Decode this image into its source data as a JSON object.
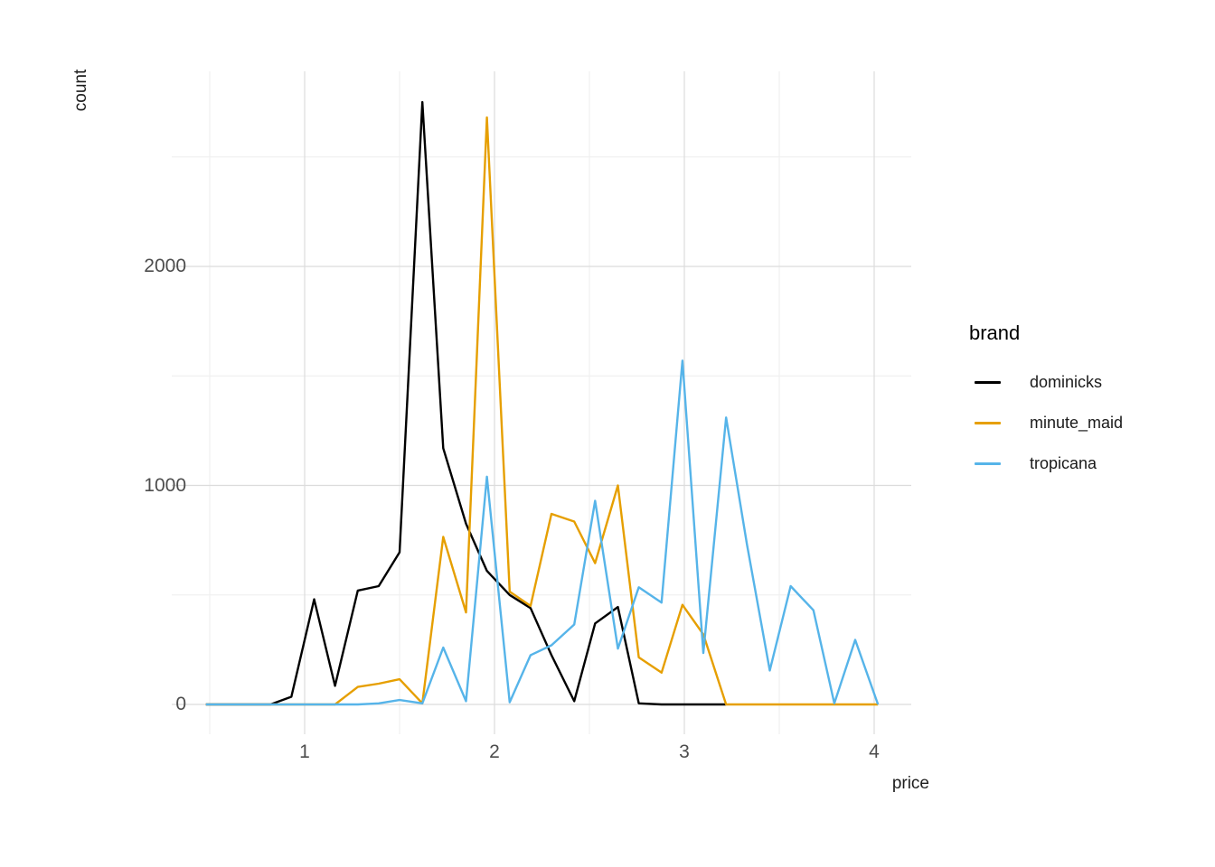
{
  "chart_data": {
    "type": "line",
    "subtype": "frequency-polygon",
    "title": "",
    "xlabel": "price",
    "ylabel": "count",
    "xlim": [
      0.42,
      4.1
    ],
    "ylim": [
      0,
      2750
    ],
    "x_ticks_major": [
      1,
      2,
      3,
      4
    ],
    "x_ticks_minor": [
      0.5,
      1.5,
      2.5,
      3.5
    ],
    "y_ticks_major": [
      0,
      1000,
      2000
    ],
    "y_ticks_minor": [
      500,
      1500,
      2500
    ],
    "grid": "on",
    "x": [
      0.48,
      0.59,
      0.7,
      0.82,
      0.93,
      1.05,
      1.16,
      1.28,
      1.39,
      1.5,
      1.62,
      1.73,
      1.85,
      1.96,
      2.08,
      2.19,
      2.3,
      2.42,
      2.53,
      2.65,
      2.76,
      2.88,
      2.99,
      3.1,
      3.22,
      3.33,
      3.45,
      3.56,
      3.68,
      3.79,
      3.9,
      4.02
    ],
    "series": [
      {
        "name": "dominicks",
        "color": "#000000",
        "values": [
          0,
          0,
          0,
          0,
          35,
          480,
          85,
          520,
          540,
          695,
          2750,
          1170,
          825,
          610,
          500,
          440,
          225,
          15,
          370,
          445,
          5,
          0,
          0,
          0,
          0,
          null,
          null,
          null,
          null,
          null,
          null,
          null
        ]
      },
      {
        "name": "minute_maid",
        "color": "#E69F00",
        "values": [
          0,
          0,
          0,
          0,
          0,
          0,
          0,
          80,
          95,
          115,
          5,
          765,
          420,
          2680,
          515,
          450,
          870,
          835,
          645,
          1000,
          215,
          145,
          455,
          320,
          0,
          0,
          0,
          0,
          0,
          0,
          0,
          0
        ]
      },
      {
        "name": "tropicana",
        "color": "#56B4E9",
        "values": [
          0,
          0,
          0,
          0,
          0,
          0,
          0,
          0,
          5,
          20,
          5,
          260,
          15,
          1040,
          10,
          225,
          270,
          365,
          930,
          255,
          535,
          465,
          1570,
          235,
          1310,
          730,
          155,
          540,
          430,
          5,
          295,
          0
        ]
      }
    ],
    "legend": {
      "title": "brand",
      "position": "right",
      "entries": [
        "dominicks",
        "minute_maid",
        "tropicana"
      ]
    },
    "colors": {
      "grid_major": "#dcdcdc",
      "grid_minor": "#eeeeee",
      "tick_text": "#4d4d4d",
      "axis_title_text": "#1d1d1d"
    }
  }
}
